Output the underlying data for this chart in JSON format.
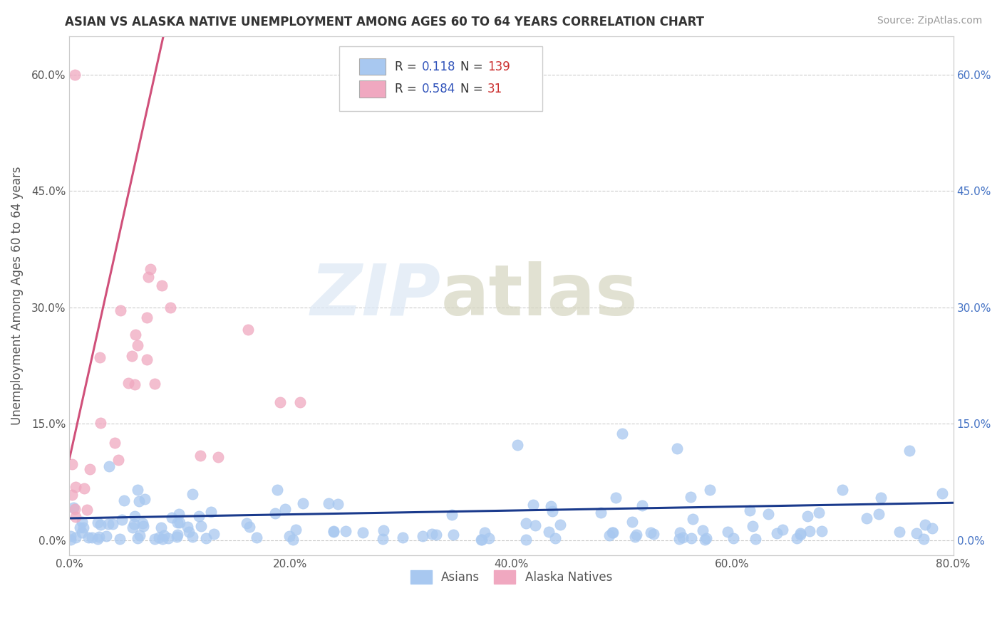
{
  "title": "ASIAN VS ALASKA NATIVE UNEMPLOYMENT AMONG AGES 60 TO 64 YEARS CORRELATION CHART",
  "source": "Source: ZipAtlas.com",
  "ylabel": "Unemployment Among Ages 60 to 64 years",
  "xlim": [
    0.0,
    0.8
  ],
  "ylim": [
    -0.02,
    0.65
  ],
  "yticks": [
    0.0,
    0.15,
    0.3,
    0.45,
    0.6
  ],
  "ytick_labels": [
    "0.0%",
    "15.0%",
    "30.0%",
    "45.0%",
    "60.0%"
  ],
  "xticks": [
    0.0,
    0.2,
    0.4,
    0.6,
    0.8
  ],
  "xtick_labels": [
    "0.0%",
    "20.0%",
    "40.0%",
    "60.0%",
    "80.0%"
  ],
  "asian_R": 0.118,
  "asian_N": 139,
  "alaska_R": 0.584,
  "alaska_N": 31,
  "asian_color": "#a8c8f0",
  "alaska_color": "#f0a8c0",
  "asian_line_color": "#1a3a8c",
  "alaska_line_color": "#d0507a",
  "background_color": "#ffffff",
  "grid_color": "#cccccc",
  "asian_line_x": [
    0.0,
    0.8
  ],
  "asian_line_y": [
    0.028,
    0.048
  ],
  "alaska_line_x": [
    0.0,
    0.085
  ],
  "alaska_line_y": [
    0.105,
    0.65
  ]
}
